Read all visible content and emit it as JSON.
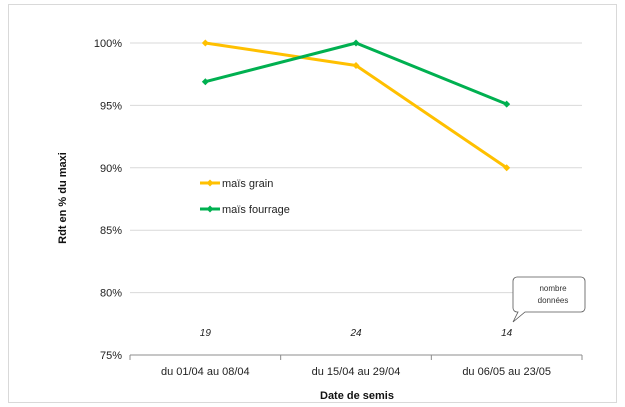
{
  "chart_data": {
    "type": "line",
    "title": "",
    "xlabel": "Date de semis",
    "ylabel": "Rdt en % du maxi",
    "categories": [
      "du 01/04 au 08/04",
      "du 15/04 au 29/04",
      "du 06/05 au 23/05"
    ],
    "ylim": [
      75,
      100
    ],
    "yticks": [
      "75%",
      "80%",
      "85%",
      "90%",
      "95%",
      "100%"
    ],
    "grid": true,
    "legend_position": "inside-left",
    "series": [
      {
        "name": "maïs grain",
        "values": [
          100,
          98.2,
          90.0
        ],
        "color": "#FFC000"
      },
      {
        "name": "maïs fourrage",
        "values": [
          96.9,
          100,
          95.1
        ],
        "color": "#00B050"
      }
    ],
    "annotations": {
      "counts": [
        "19",
        "24",
        "14"
      ],
      "callout_line1": "nombre",
      "callout_line2": "données"
    }
  }
}
